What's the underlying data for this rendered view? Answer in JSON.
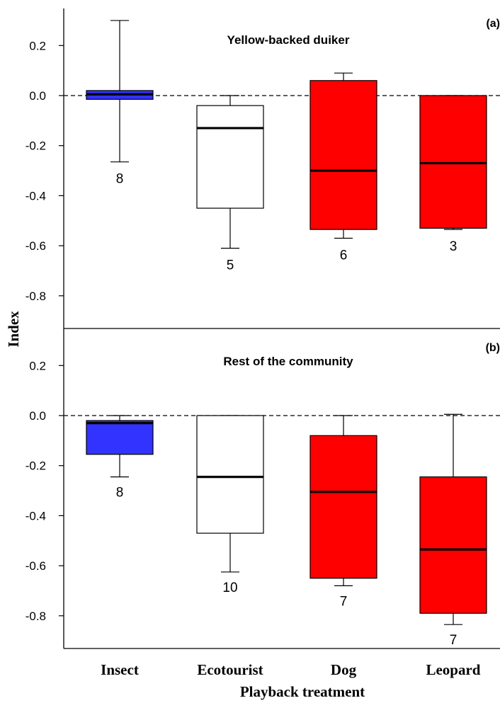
{
  "chart_data": [
    {
      "type": "box",
      "panel_label": "(a)",
      "title": "Yellow-backed duiker",
      "ylabel": "Index",
      "xlabel": "",
      "ylim": [
        -0.95,
        0.35
      ],
      "yticks": [
        0.2,
        0.0,
        -0.2,
        -0.4,
        -0.6,
        -0.8
      ],
      "ytick_labels": [
        "0.2",
        "0.0",
        "-0.2",
        "-0.4",
        "-0.6",
        "-0.8"
      ],
      "reference_line": 0.0,
      "categories": [
        "Insect",
        "Ecotourist",
        "Dog",
        "Leopard"
      ],
      "boxes": [
        {
          "whisker_low": -0.265,
          "q1": -0.015,
          "median": 0.005,
          "q3": 0.02,
          "whisker_high": 0.3,
          "n": "8",
          "color": "#3333ff"
        },
        {
          "whisker_low": -0.61,
          "q1": -0.45,
          "median": -0.13,
          "q3": -0.04,
          "whisker_high": 0.0,
          "n": "5",
          "color": "#ffffff"
        },
        {
          "whisker_low": -0.57,
          "q1": -0.535,
          "median": -0.3,
          "q3": 0.06,
          "whisker_high": 0.09,
          "n": "6",
          "color": "#ff0000"
        },
        {
          "whisker_low": -0.535,
          "q1": -0.53,
          "median": -0.27,
          "q3": 0.0,
          "whisker_high": 0.0,
          "n": "3",
          "color": "#ff0000"
        }
      ]
    },
    {
      "type": "box",
      "panel_label": "(b)",
      "title": "Rest of the community",
      "ylabel": "Index",
      "xlabel": "Playback treatment",
      "ylim": [
        -0.92,
        0.33
      ],
      "yticks": [
        0.2,
        0.0,
        -0.2,
        -0.4,
        -0.6,
        -0.8
      ],
      "ytick_labels": [
        "0.2",
        "0.0",
        "-0.2",
        "-0.4",
        "-0.6",
        "-0.8"
      ],
      "reference_line": 0.0,
      "categories": [
        "Insect",
        "Ecotourist",
        "Dog",
        "Leopard"
      ],
      "boxes": [
        {
          "whisker_low": -0.245,
          "q1": -0.155,
          "median": -0.03,
          "q3": -0.02,
          "whisker_high": 0.0,
          "n": "8",
          "color": "#3333ff"
        },
        {
          "whisker_low": -0.625,
          "q1": -0.47,
          "median": -0.245,
          "q3": 0.0,
          "whisker_high": 0.0,
          "n": "10",
          "color": "#ffffff"
        },
        {
          "whisker_low": -0.68,
          "q1": -0.65,
          "median": -0.305,
          "q3": -0.08,
          "whisker_high": 0.0,
          "n": "7",
          "color": "#ff0000"
        },
        {
          "whisker_low": -0.835,
          "q1": -0.79,
          "median": -0.535,
          "q3": -0.245,
          "whisker_high": 0.005,
          "n": "7",
          "color": "#ff0000"
        }
      ]
    }
  ]
}
